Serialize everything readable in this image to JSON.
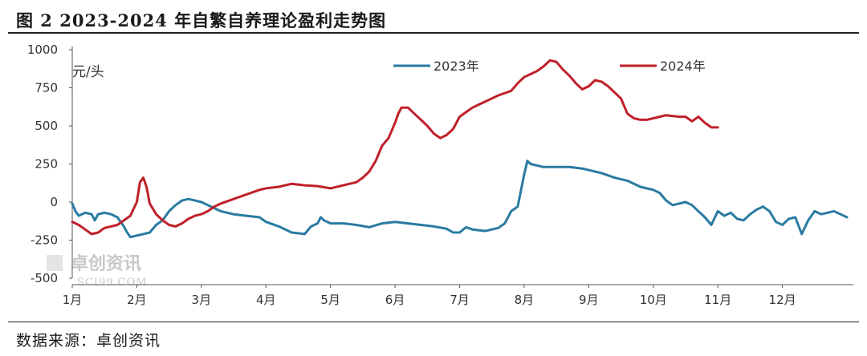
{
  "figure": {
    "title": "图 2 2023-2024 年自繁自养理论盈利走势图",
    "source": "数据来源：卓创资讯"
  },
  "watermark": {
    "cn": "卓创资讯",
    "en": "SCI99.COM"
  },
  "colors": {
    "s2023": "#2a7ba1",
    "s2024": "#c0202a",
    "axis": "#555555"
  },
  "chart_data": {
    "type": "line",
    "unit_label": "元/头",
    "ylim": [
      -500,
      1000
    ],
    "yticks": [
      1000,
      750,
      500,
      250,
      0,
      -250,
      -500
    ],
    "xlim": [
      1,
      13
    ],
    "xticks": [
      {
        "label": "1月",
        "x": 1
      },
      {
        "label": "2月",
        "x": 2
      },
      {
        "label": "3月",
        "x": 3
      },
      {
        "label": "4月",
        "x": 4
      },
      {
        "label": "5月",
        "x": 5
      },
      {
        "label": "6月",
        "x": 6
      },
      {
        "label": "7月",
        "x": 7
      },
      {
        "label": "8月",
        "x": 8
      },
      {
        "label": "9月",
        "x": 9
      },
      {
        "label": "10月",
        "x": 10
      },
      {
        "label": "11月",
        "x": 11
      },
      {
        "label": "12月",
        "x": 12
      }
    ],
    "legend_position": "top",
    "grid": false,
    "series": [
      {
        "name": "2023年",
        "color": "#2a7ba1",
        "points": [
          [
            1.0,
            -10
          ],
          [
            1.05,
            -60
          ],
          [
            1.1,
            -90
          ],
          [
            1.2,
            -70
          ],
          [
            1.3,
            -80
          ],
          [
            1.35,
            -120
          ],
          [
            1.4,
            -80
          ],
          [
            1.5,
            -70
          ],
          [
            1.6,
            -80
          ],
          [
            1.7,
            -100
          ],
          [
            1.8,
            -160
          ],
          [
            1.85,
            -200
          ],
          [
            1.9,
            -230
          ],
          [
            2.0,
            -220
          ],
          [
            2.1,
            -210
          ],
          [
            2.2,
            -200
          ],
          [
            2.3,
            -150
          ],
          [
            2.4,
            -120
          ],
          [
            2.5,
            -60
          ],
          [
            2.6,
            -20
          ],
          [
            2.7,
            10
          ],
          [
            2.8,
            20
          ],
          [
            2.9,
            10
          ],
          [
            3.0,
            0
          ],
          [
            3.1,
            -20
          ],
          [
            3.2,
            -40
          ],
          [
            3.3,
            -60
          ],
          [
            3.5,
            -80
          ],
          [
            3.7,
            -90
          ],
          [
            3.9,
            -100
          ],
          [
            4.0,
            -130
          ],
          [
            4.2,
            -160
          ],
          [
            4.4,
            -200
          ],
          [
            4.6,
            -210
          ],
          [
            4.7,
            -160
          ],
          [
            4.8,
            -140
          ],
          [
            4.85,
            -100
          ],
          [
            4.9,
            -120
          ],
          [
            5.0,
            -140
          ],
          [
            5.2,
            -140
          ],
          [
            5.4,
            -150
          ],
          [
            5.6,
            -165
          ],
          [
            5.8,
            -140
          ],
          [
            6.0,
            -130
          ],
          [
            6.2,
            -140
          ],
          [
            6.4,
            -150
          ],
          [
            6.6,
            -160
          ],
          [
            6.8,
            -175
          ],
          [
            6.9,
            -200
          ],
          [
            7.0,
            -200
          ],
          [
            7.1,
            -165
          ],
          [
            7.2,
            -180
          ],
          [
            7.4,
            -190
          ],
          [
            7.5,
            -180
          ],
          [
            7.6,
            -170
          ],
          [
            7.7,
            -140
          ],
          [
            7.8,
            -60
          ],
          [
            7.9,
            -30
          ],
          [
            8.0,
            180
          ],
          [
            8.05,
            270
          ],
          [
            8.1,
            250
          ],
          [
            8.2,
            240
          ],
          [
            8.3,
            230
          ],
          [
            8.5,
            230
          ],
          [
            8.7,
            230
          ],
          [
            8.9,
            220
          ],
          [
            9.0,
            210
          ],
          [
            9.2,
            190
          ],
          [
            9.4,
            160
          ],
          [
            9.6,
            140
          ],
          [
            9.8,
            100
          ],
          [
            10.0,
            80
          ],
          [
            10.1,
            60
          ],
          [
            10.2,
            10
          ],
          [
            10.3,
            -20
          ],
          [
            10.5,
            0
          ],
          [
            10.6,
            -20
          ],
          [
            10.7,
            -60
          ],
          [
            10.8,
            -100
          ],
          [
            10.9,
            -150
          ],
          [
            11.0,
            -60
          ],
          [
            11.1,
            -90
          ],
          [
            11.2,
            -70
          ],
          [
            11.3,
            -110
          ],
          [
            11.4,
            -120
          ],
          [
            11.5,
            -80
          ],
          [
            11.6,
            -50
          ],
          [
            11.7,
            -30
          ],
          [
            11.8,
            -60
          ],
          [
            11.9,
            -130
          ],
          [
            12.0,
            -150
          ],
          [
            12.1,
            -110
          ],
          [
            12.2,
            -100
          ],
          [
            12.3,
            -210
          ],
          [
            12.4,
            -120
          ],
          [
            12.5,
            -60
          ],
          [
            12.6,
            -80
          ],
          [
            12.7,
            -70
          ],
          [
            12.8,
            -60
          ],
          [
            12.9,
            -80
          ],
          [
            13.0,
            -100
          ]
        ]
      },
      {
        "name": "2024年",
        "color": "#c0202a",
        "points": [
          [
            1.0,
            -130
          ],
          [
            1.1,
            -150
          ],
          [
            1.2,
            -180
          ],
          [
            1.3,
            -210
          ],
          [
            1.4,
            -200
          ],
          [
            1.5,
            -170
          ],
          [
            1.6,
            -160
          ],
          [
            1.7,
            -150
          ],
          [
            1.8,
            -120
          ],
          [
            1.9,
            -90
          ],
          [
            2.0,
            0
          ],
          [
            2.05,
            130
          ],
          [
            2.1,
            160
          ],
          [
            2.15,
            100
          ],
          [
            2.2,
            -10
          ],
          [
            2.3,
            -80
          ],
          [
            2.4,
            -120
          ],
          [
            2.5,
            -150
          ],
          [
            2.6,
            -160
          ],
          [
            2.7,
            -140
          ],
          [
            2.8,
            -110
          ],
          [
            2.9,
            -90
          ],
          [
            3.0,
            -80
          ],
          [
            3.1,
            -60
          ],
          [
            3.2,
            -30
          ],
          [
            3.3,
            -10
          ],
          [
            3.5,
            20
          ],
          [
            3.7,
            50
          ],
          [
            3.9,
            80
          ],
          [
            4.0,
            90
          ],
          [
            4.2,
            100
          ],
          [
            4.4,
            120
          ],
          [
            4.6,
            110
          ],
          [
            4.8,
            105
          ],
          [
            5.0,
            90
          ],
          [
            5.2,
            110
          ],
          [
            5.4,
            130
          ],
          [
            5.5,
            160
          ],
          [
            5.6,
            200
          ],
          [
            5.7,
            270
          ],
          [
            5.8,
            370
          ],
          [
            5.9,
            420
          ],
          [
            6.0,
            520
          ],
          [
            6.05,
            580
          ],
          [
            6.1,
            620
          ],
          [
            6.2,
            620
          ],
          [
            6.3,
            580
          ],
          [
            6.4,
            540
          ],
          [
            6.5,
            500
          ],
          [
            6.6,
            450
          ],
          [
            6.7,
            420
          ],
          [
            6.8,
            440
          ],
          [
            6.9,
            480
          ],
          [
            7.0,
            560
          ],
          [
            7.1,
            590
          ],
          [
            7.2,
            620
          ],
          [
            7.3,
            640
          ],
          [
            7.5,
            680
          ],
          [
            7.6,
            700
          ],
          [
            7.8,
            730
          ],
          [
            7.9,
            780
          ],
          [
            8.0,
            820
          ],
          [
            8.1,
            840
          ],
          [
            8.2,
            860
          ],
          [
            8.3,
            890
          ],
          [
            8.4,
            930
          ],
          [
            8.5,
            920
          ],
          [
            8.6,
            870
          ],
          [
            8.7,
            830
          ],
          [
            8.8,
            780
          ],
          [
            8.9,
            740
          ],
          [
            9.0,
            760
          ],
          [
            9.1,
            800
          ],
          [
            9.2,
            790
          ],
          [
            9.3,
            760
          ],
          [
            9.4,
            720
          ],
          [
            9.5,
            680
          ],
          [
            9.6,
            580
          ],
          [
            9.7,
            550
          ],
          [
            9.8,
            540
          ],
          [
            9.9,
            540
          ],
          [
            10.0,
            550
          ],
          [
            10.2,
            570
          ],
          [
            10.4,
            560
          ],
          [
            10.5,
            560
          ],
          [
            10.6,
            530
          ],
          [
            10.7,
            560
          ],
          [
            10.8,
            520
          ],
          [
            10.9,
            490
          ],
          [
            11.0,
            490
          ]
        ]
      }
    ]
  }
}
